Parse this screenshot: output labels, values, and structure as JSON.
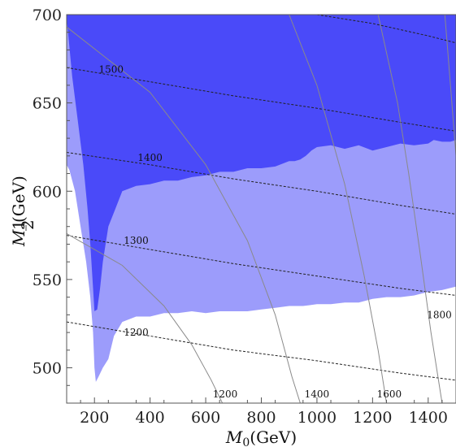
{
  "chart_data": {
    "type": "contour",
    "xlabel": {
      "main": "M",
      "sub": "0",
      "unit": "(GeV)"
    },
    "ylabel": {
      "main": "M",
      "sub_num": "1",
      "sub_den": "2",
      "unit": "(GeV)"
    },
    "xlim": [
      100,
      1500
    ],
    "ylim": [
      480,
      700
    ],
    "x_ticks": [
      200,
      400,
      600,
      800,
      1000,
      1200,
      1400
    ],
    "y_ticks": [
      500,
      550,
      600,
      650,
      700
    ],
    "colors": {
      "light_region": "#9c9cfb",
      "dark_region": "#4a4af9",
      "dotted": "#222222",
      "solid": "#8a8a8a",
      "frame": "#555555"
    },
    "light_region_boundary": [
      [
        100,
        700
      ],
      [
        1500,
        700
      ],
      [
        1500,
        546
      ],
      [
        1450,
        544
      ],
      [
        1400,
        543
      ],
      [
        1350,
        541
      ],
      [
        1300,
        540
      ],
      [
        1250,
        540
      ],
      [
        1200,
        539
      ],
      [
        1150,
        537
      ],
      [
        1100,
        537
      ],
      [
        1050,
        536
      ],
      [
        1000,
        536
      ],
      [
        950,
        535
      ],
      [
        900,
        535
      ],
      [
        850,
        534
      ],
      [
        800,
        533
      ],
      [
        750,
        532
      ],
      [
        700,
        532
      ],
      [
        650,
        532
      ],
      [
        600,
        531
      ],
      [
        550,
        532
      ],
      [
        500,
        531
      ],
      [
        450,
        531
      ],
      [
        400,
        529
      ],
      [
        350,
        529
      ],
      [
        300,
        526
      ],
      [
        270,
        518
      ],
      [
        250,
        505
      ],
      [
        230,
        500
      ],
      [
        215,
        495
      ],
      [
        205,
        492
      ],
      [
        200,
        500
      ],
      [
        195,
        520
      ],
      [
        185,
        540
      ],
      [
        170,
        560
      ],
      [
        150,
        580
      ],
      [
        130,
        600
      ],
      [
        110,
        612
      ],
      [
        100,
        615
      ]
    ],
    "dark_region_boundary": [
      [
        100,
        700
      ],
      [
        1500,
        700
      ],
      [
        1500,
        629
      ],
      [
        1480,
        628
      ],
      [
        1450,
        628
      ],
      [
        1420,
        629
      ],
      [
        1400,
        627
      ],
      [
        1350,
        626
      ],
      [
        1300,
        627
      ],
      [
        1250,
        625
      ],
      [
        1200,
        623
      ],
      [
        1150,
        626
      ],
      [
        1100,
        624
      ],
      [
        1050,
        626
      ],
      [
        1000,
        625
      ],
      [
        980,
        623
      ],
      [
        960,
        620
      ],
      [
        940,
        618
      ],
      [
        920,
        617
      ],
      [
        900,
        617
      ],
      [
        850,
        614
      ],
      [
        800,
        613
      ],
      [
        750,
        613
      ],
      [
        700,
        611
      ],
      [
        650,
        611
      ],
      [
        600,
        609
      ],
      [
        550,
        608
      ],
      [
        500,
        606
      ],
      [
        450,
        606
      ],
      [
        400,
        604
      ],
      [
        350,
        603
      ],
      [
        300,
        600
      ],
      [
        275,
        590
      ],
      [
        250,
        580
      ],
      [
        230,
        560
      ],
      [
        220,
        545
      ],
      [
        210,
        533
      ],
      [
        200,
        532
      ],
      [
        195,
        545
      ],
      [
        185,
        570
      ],
      [
        175,
        590
      ],
      [
        160,
        615
      ],
      [
        140,
        640
      ],
      [
        120,
        665
      ],
      [
        105,
        690
      ],
      [
        100,
        697
      ]
    ],
    "dotted_contours": [
      {
        "label": "1200",
        "label_at": [
          350,
          520
        ],
        "points": [
          [
            100,
            526
          ],
          [
            400,
            518
          ],
          [
            700,
            510
          ],
          [
            1000,
            504
          ],
          [
            1300,
            497
          ],
          [
            1500,
            493
          ]
        ]
      },
      {
        "label": "1300",
        "label_at": [
          350,
          572
        ],
        "points": [
          [
            100,
            575
          ],
          [
            400,
            567
          ],
          [
            700,
            559
          ],
          [
            1000,
            552
          ],
          [
            1300,
            545
          ],
          [
            1500,
            541
          ]
        ]
      },
      {
        "label": "1400",
        "label_at": [
          400,
          619
        ],
        "points": [
          [
            100,
            622
          ],
          [
            400,
            615
          ],
          [
            700,
            607
          ],
          [
            1000,
            600
          ],
          [
            1300,
            592
          ],
          [
            1500,
            587
          ]
        ]
      },
      {
        "label": "1500",
        "label_at": [
          260,
          669
        ],
        "points": [
          [
            100,
            670
          ],
          [
            400,
            662
          ],
          [
            700,
            654
          ],
          [
            1000,
            647
          ],
          [
            1300,
            639
          ],
          [
            1500,
            634
          ]
        ]
      },
      {
        "label": "",
        "label_at": null,
        "points": [
          [
            1000,
            700
          ],
          [
            1200,
            695
          ],
          [
            1400,
            688
          ],
          [
            1500,
            684
          ]
        ]
      }
    ],
    "solid_contours": [
      {
        "label": "",
        "label_at": null,
        "points": [
          [
            100,
            576
          ],
          [
            300,
            558
          ],
          [
            450,
            535
          ],
          [
            550,
            513
          ],
          [
            620,
            493
          ],
          [
            660,
            480
          ]
        ]
      },
      {
        "label": "1200",
        "label_at": [
          670,
          485
        ],
        "points": [
          [
            100,
            693
          ],
          [
            400,
            656
          ],
          [
            600,
            615
          ],
          [
            750,
            572
          ],
          [
            850,
            530
          ],
          [
            910,
            495
          ],
          [
            940,
            480
          ]
        ]
      },
      {
        "label": "1400",
        "label_at": [
          1000,
          485
        ],
        "points": [
          [
            900,
            700
          ],
          [
            1000,
            660
          ],
          [
            1100,
            604
          ],
          [
            1170,
            552
          ],
          [
            1220,
            510
          ],
          [
            1250,
            480
          ]
        ]
      },
      {
        "label": "1600",
        "label_at": [
          1260,
          485
        ],
        "points": [
          [
            1220,
            700
          ],
          [
            1290,
            650
          ],
          [
            1330,
            610
          ],
          [
            1370,
            566
          ],
          [
            1410,
            520
          ],
          [
            1450,
            480
          ]
        ]
      },
      {
        "label": "1800",
        "label_at": [
          1440,
          530
        ],
        "points": [
          [
            1460,
            700
          ],
          [
            1480,
            660
          ],
          [
            1500,
            620
          ]
        ]
      }
    ]
  }
}
